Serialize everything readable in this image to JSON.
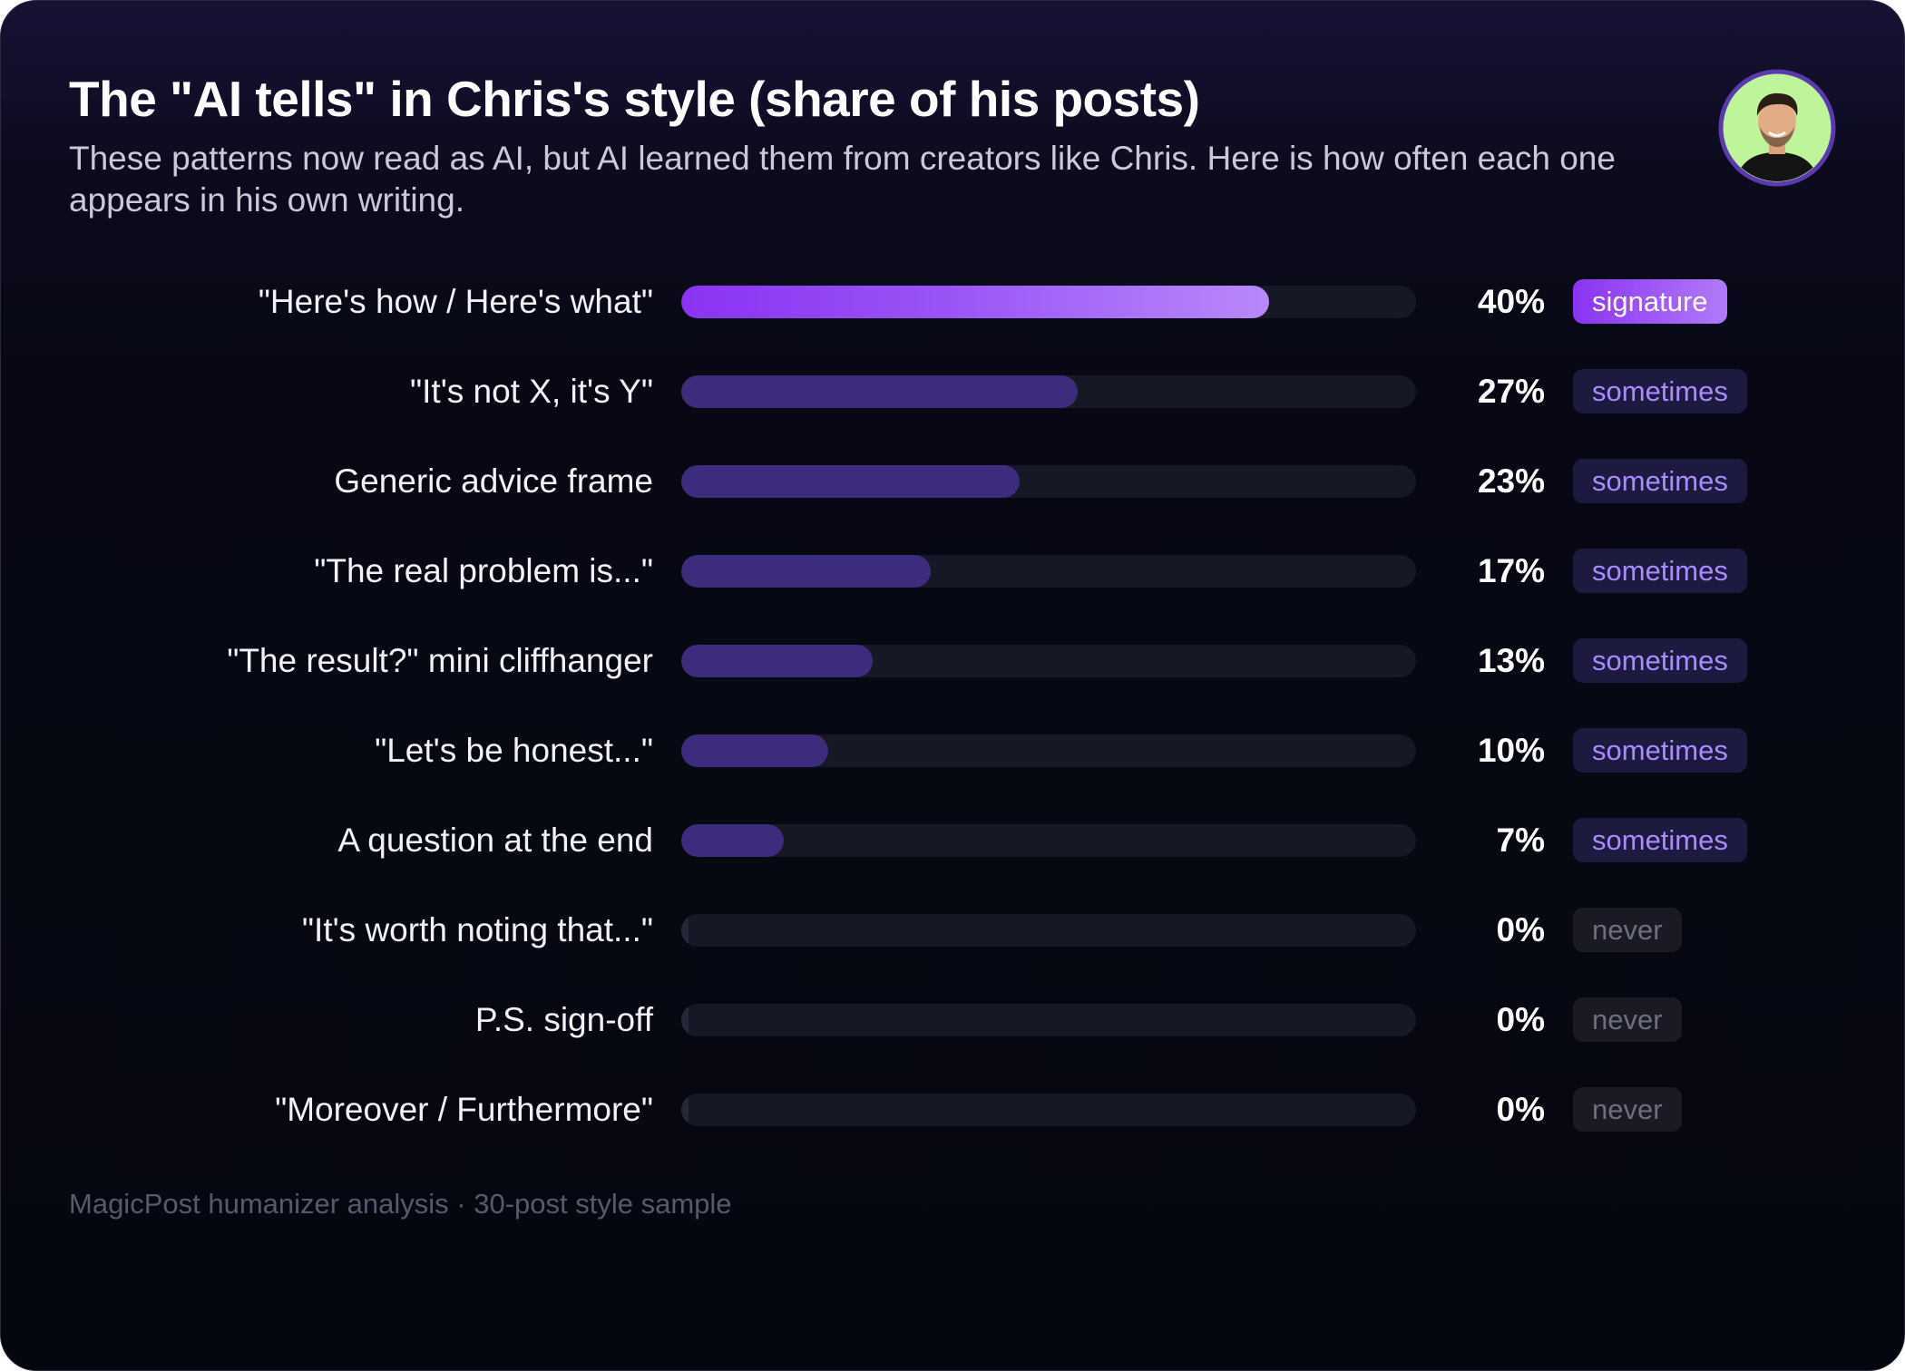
{
  "header": {
    "title": "The \"AI tells\" in Chris's style (share of his posts)",
    "subtitle": "These patterns now read as AI, but AI learned them from creators like Chris. Here is how often each one appears in his own writing."
  },
  "footer": {
    "source": "MagicPost humanizer analysis · 30-post style sample"
  },
  "colors": {
    "signature": "#8a34f2",
    "sometimes_bar": "#3d2c7e",
    "sometimes_text": "#a88bff",
    "never_text": "#6d6f7e",
    "background": "#050710"
  },
  "chart_data": {
    "type": "bar",
    "orientation": "horizontal",
    "title": "The \"AI tells\" in Chris's style (share of his posts)",
    "xlim": [
      0,
      100
    ],
    "grid": false,
    "unit": "%",
    "categories": [
      "\"Here's how / Here's what\"",
      "\"It's not X, it's Y\"",
      "Generic advice frame",
      "\"The real problem is...\"",
      "\"The result?\" mini cliffhanger",
      "\"Let's be honest...\"",
      "A question at the end",
      "\"It's worth noting that...\"",
      "P.S. sign-off",
      "\"Moreover / Furthermore\""
    ],
    "values": [
      40,
      27,
      23,
      17,
      13,
      10,
      7,
      0,
      0,
      0
    ],
    "value_labels": [
      "40%",
      "27%",
      "23%",
      "17%",
      "13%",
      "10%",
      "7%",
      "0%",
      "0%",
      "0%"
    ],
    "badges": [
      "signature",
      "sometimes",
      "sometimes",
      "sometimes",
      "sometimes",
      "sometimes",
      "sometimes",
      "never",
      "never",
      "never"
    ]
  }
}
